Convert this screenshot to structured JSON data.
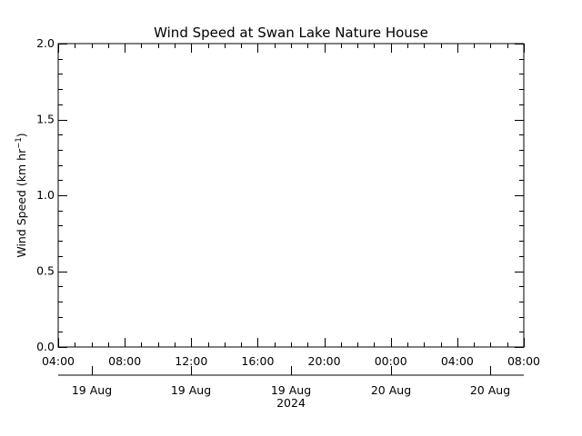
{
  "chart_data": {
    "type": "line",
    "title": "Wind Speed at Swan Lake Nature House",
    "ylabel_main": "Wind Speed (km hr",
    "ylabel_sup": "−1",
    "ylabel_close": ")",
    "xlabel": "",
    "ylim": [
      0.0,
      2.0
    ],
    "y_ticks": [
      "0.0",
      "0.5",
      "1.0",
      "1.5",
      "2.0"
    ],
    "x_time_ticks": [
      "04:00",
      "08:00",
      "12:00",
      "16:00",
      "20:00",
      "00:00",
      "04:00",
      "08:00"
    ],
    "x_date_ticks": [
      "19 Aug",
      "19 Aug",
      "19 Aug",
      "20 Aug",
      "20 Aug"
    ],
    "x_year": "2024",
    "series": [],
    "grid": false
  }
}
